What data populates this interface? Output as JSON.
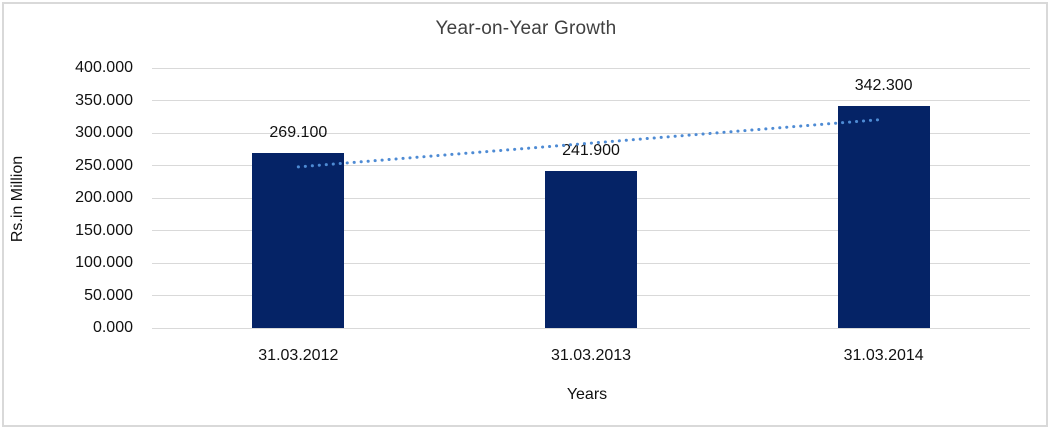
{
  "chart_data": {
    "type": "bar",
    "title": "Year-on-Year Growth",
    "xlabel": "Years",
    "ylabel": "Rs.in Million",
    "categories": [
      "31.03.2012",
      "31.03.2013",
      "31.03.2014"
    ],
    "values": [
      269.1,
      241.9,
      342.3
    ],
    "data_labels": [
      "269.100",
      "241.900",
      "342.300"
    ],
    "y_tick_values": [
      0,
      50,
      100,
      150,
      200,
      250,
      300,
      350,
      400
    ],
    "y_tick_labels": [
      "0.000",
      "50.000",
      "100.000",
      "150.000",
      "200.000",
      "250.000",
      "300.000",
      "350.000",
      "400.000"
    ],
    "ylim": [
      0,
      400
    ],
    "grid": true,
    "legend": "none",
    "trendline": {
      "type": "linear",
      "style": "dotted"
    },
    "colors": {
      "bar": "#052366",
      "trendline": "#4e8bd4",
      "gridline": "#d9d9d9",
      "frame": "#d9d9d9",
      "title_text": "#404040",
      "axis_text": "#111111"
    }
  }
}
